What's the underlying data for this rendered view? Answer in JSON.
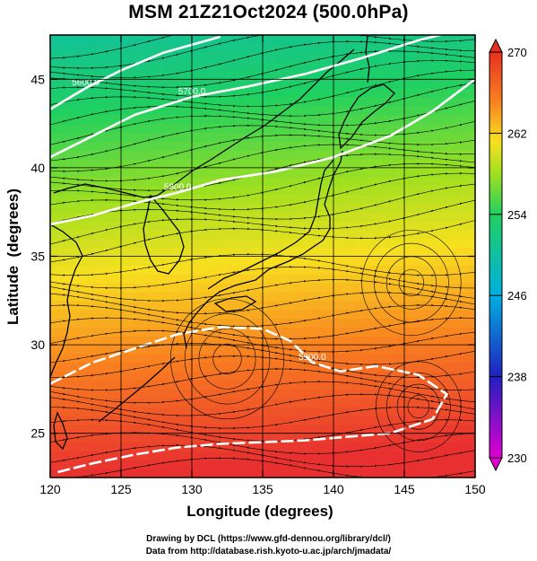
{
  "title": "MSM 21Z21Oct2024 (500.0hPa)",
  "credits": {
    "line1": "Drawing by DCL (https://www.gfd-dennou.org/library/dcl/)",
    "line2": "Data from http://database.rish.kyoto-u.ac.jp/arch/jmadata/"
  },
  "map": {
    "xlabel": "Longitude (degrees)",
    "ylabel": "Latitude  (degrees)",
    "xlim": [
      120,
      150
    ],
    "ylim": [
      22.5,
      47.5
    ],
    "xticks": [
      120,
      125,
      130,
      135,
      140,
      145,
      150
    ],
    "yticks": [
      25,
      30,
      35,
      40,
      45
    ],
    "grid": true,
    "colorbar": {
      "min": 230,
      "max": 270,
      "ticks": [
        230,
        238,
        246,
        254,
        262,
        270
      ],
      "colors": [
        "#e000d0",
        "#2020c0",
        "#00b0e0",
        "#20d060",
        "#a0e020",
        "#f8e020",
        "#f88020",
        "#e83020"
      ]
    },
    "contours": [
      {
        "label": "5600.0",
        "points": [
          [
            120,
            43.3
          ],
          [
            122.5,
            44.5
          ],
          [
            125,
            45.5
          ],
          [
            128,
            46.5
          ],
          [
            132,
            47.4
          ]
        ]
      },
      {
        "label": "5700.0",
        "points": [
          [
            120,
            40.6
          ],
          [
            123,
            41.8
          ],
          [
            126,
            43.0
          ],
          [
            130,
            44.0
          ],
          [
            134,
            44.6
          ],
          [
            138,
            45.3
          ],
          [
            142,
            46.2
          ],
          [
            146,
            47.2
          ],
          [
            150,
            48.0
          ]
        ]
      },
      {
        "label": "5800.0",
        "points": [
          [
            120,
            36.8
          ],
          [
            123,
            37.3
          ],
          [
            126,
            38.0
          ],
          [
            129,
            38.6
          ],
          [
            132,
            39.3
          ],
          [
            136,
            39.8
          ],
          [
            140,
            40.6
          ],
          [
            144,
            41.8
          ],
          [
            147,
            43.2
          ],
          [
            150,
            45.0
          ]
        ]
      },
      {
        "label": "5900.0",
        "points": [
          [
            120,
            27.8
          ],
          [
            123,
            29.0
          ],
          [
            126,
            29.8
          ],
          [
            129,
            30.6
          ],
          [
            132,
            31.0
          ],
          [
            135,
            30.9
          ],
          [
            137,
            30.2
          ],
          [
            138.5,
            29.0
          ],
          [
            140.5,
            28.5
          ],
          [
            143,
            28.8
          ],
          [
            146,
            28.3
          ],
          [
            148,
            27.2
          ],
          [
            147,
            25.8
          ],
          [
            144,
            25.0
          ],
          [
            141,
            24.8
          ],
          [
            138,
            24.6
          ],
          [
            135,
            24.5
          ],
          [
            132,
            24.4
          ],
          [
            129,
            24.2
          ],
          [
            126,
            23.8
          ],
          [
            123,
            23.3
          ],
          [
            120.5,
            22.8
          ]
        ]
      }
    ]
  }
}
